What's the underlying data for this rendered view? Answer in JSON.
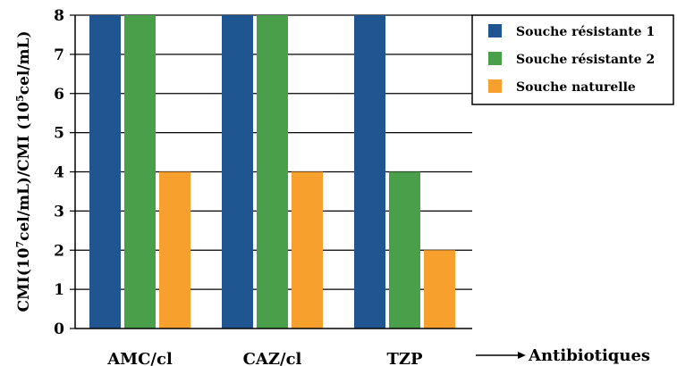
{
  "chart_data": {
    "type": "bar",
    "categories": [
      "AMC/cl",
      "CAZ/cl",
      "TZP"
    ],
    "series": [
      {
        "name": "Souche résistante 1",
        "color": "#1f5591",
        "values": [
          8,
          8,
          8
        ]
      },
      {
        "name": "Souche résistante 2",
        "color": "#4aa04a",
        "values": [
          8,
          8,
          4
        ]
      },
      {
        "name": "Souche naturelle",
        "color": "#f7a02d",
        "values": [
          4,
          4,
          2
        ]
      }
    ],
    "ylabel": {
      "p1": "CMI(10",
      "sup1": "7",
      "p2": "cel/mL)/CMI (10",
      "sup2": "5",
      "p3": "cel/mL)"
    },
    "xlabel": "Antibiotiques",
    "ylim": [
      0,
      8
    ],
    "yticks": [
      0,
      1,
      2,
      3,
      4,
      5,
      6,
      7,
      8
    ],
    "grid": "horizontal",
    "legend_position": "top-right"
  }
}
